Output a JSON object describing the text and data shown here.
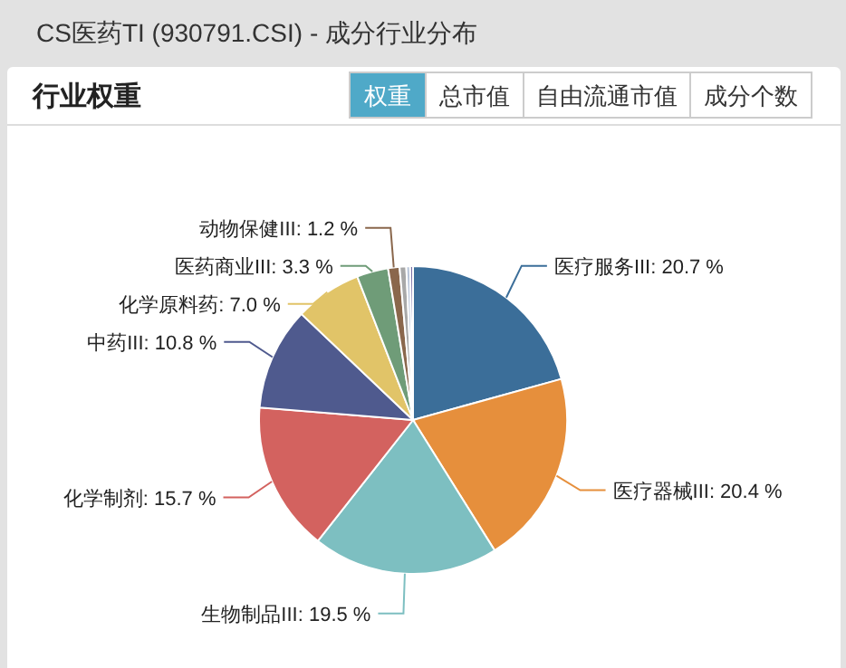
{
  "chart_data": {
    "type": "pie",
    "title": "CS医药TI (930791.CSI) - 成分行业分布",
    "subtitle": "行业权重",
    "annotations": [
      "权重",
      "总市值",
      "自由流通市值",
      "成分个数"
    ],
    "categories": [
      "医疗服务III",
      "医疗器械III",
      "生物制品III",
      "化学制剂",
      "中药III",
      "化学原料药",
      "医药商业III",
      "动物保健III",
      null,
      null,
      null
    ],
    "values": [
      20.7,
      20.4,
      19.5,
      15.7,
      10.8,
      7.0,
      3.3,
      1.2,
      0.7,
      0.4,
      0.3
    ],
    "colors": [
      "#3b6e99",
      "#e68f3c",
      "#7dbfc1",
      "#d3625f",
      "#4f5a8e",
      "#e1c468",
      "#6f9c78",
      "#8a674c",
      "#a8a8a8",
      "#b9c5d9",
      "#7a6fa6"
    ],
    "value_labels": [
      ": 20.7 %",
      ": 20.4 %",
      ": 19.5 %",
      ": 15.7 %",
      ": 10.8 %",
      ": 7.0 %",
      ": 3.3 %",
      ": 1.2 %",
      null,
      null,
      null
    ]
  }
}
